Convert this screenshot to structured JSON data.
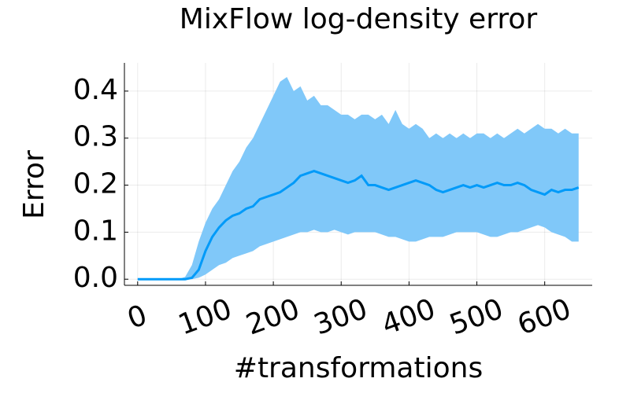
{
  "chart_data": {
    "type": "line",
    "title": "MixFlow log-density error",
    "x_label": "#transformations",
    "y_label": "Error",
    "x": [
      0,
      10,
      20,
      30,
      40,
      50,
      60,
      70,
      80,
      90,
      100,
      110,
      120,
      130,
      140,
      150,
      160,
      170,
      180,
      190,
      200,
      210,
      220,
      230,
      240,
      250,
      260,
      270,
      280,
      290,
      300,
      310,
      320,
      330,
      340,
      350,
      360,
      370,
      380,
      390,
      400,
      410,
      420,
      430,
      440,
      450,
      460,
      470,
      480,
      490,
      500,
      510,
      520,
      530,
      540,
      550,
      560,
      570,
      580,
      590,
      600,
      610,
      620,
      630,
      640,
      650
    ],
    "values": [
      0,
      0,
      0,
      0,
      0,
      0,
      0,
      0,
      0.003,
      0.02,
      0.06,
      0.09,
      0.11,
      0.125,
      0.135,
      0.14,
      0.15,
      0.155,
      0.17,
      0.175,
      0.18,
      0.185,
      0.195,
      0.205,
      0.22,
      0.225,
      0.23,
      0.225,
      0.22,
      0.215,
      0.21,
      0.205,
      0.21,
      0.22,
      0.2,
      0.2,
      0.195,
      0.19,
      0.195,
      0.2,
      0.205,
      0.21,
      0.205,
      0.2,
      0.19,
      0.185,
      0.19,
      0.195,
      0.2,
      0.195,
      0.2,
      0.195,
      0.2,
      0.205,
      0.2,
      0.2,
      0.205,
      0.2,
      0.19,
      0.185,
      0.18,
      0.19,
      0.185,
      0.19,
      0.19,
      0.195
    ],
    "lower": [
      0,
      0,
      0,
      0,
      0,
      0,
      0,
      0,
      0,
      0.003,
      0.01,
      0.02,
      0.03,
      0.035,
      0.045,
      0.05,
      0.055,
      0.06,
      0.07,
      0.075,
      0.08,
      0.085,
      0.09,
      0.095,
      0.1,
      0.1,
      0.105,
      0.1,
      0.1,
      0.105,
      0.1,
      0.095,
      0.1,
      0.1,
      0.1,
      0.1,
      0.095,
      0.09,
      0.09,
      0.085,
      0.08,
      0.08,
      0.085,
      0.09,
      0.09,
      0.09,
      0.095,
      0.1,
      0.1,
      0.1,
      0.1,
      0.095,
      0.09,
      0.09,
      0.095,
      0.1,
      0.1,
      0.105,
      0.11,
      0.115,
      0.11,
      0.1,
      0.095,
      0.09,
      0.08,
      0.08
    ],
    "upper": [
      0,
      0,
      0,
      0,
      0,
      0,
      0,
      0.005,
      0.03,
      0.08,
      0.12,
      0.15,
      0.17,
      0.2,
      0.23,
      0.25,
      0.28,
      0.3,
      0.33,
      0.36,
      0.39,
      0.42,
      0.43,
      0.4,
      0.41,
      0.38,
      0.39,
      0.37,
      0.37,
      0.36,
      0.35,
      0.35,
      0.34,
      0.35,
      0.35,
      0.34,
      0.35,
      0.33,
      0.36,
      0.33,
      0.32,
      0.33,
      0.32,
      0.3,
      0.31,
      0.3,
      0.31,
      0.3,
      0.31,
      0.3,
      0.31,
      0.31,
      0.3,
      0.31,
      0.3,
      0.31,
      0.32,
      0.31,
      0.32,
      0.33,
      0.32,
      0.32,
      0.31,
      0.32,
      0.31,
      0.31
    ],
    "color": "#009af9",
    "band_color": "#80c8f9",
    "xlim": [
      -19.5,
      670
    ],
    "ylim": [
      -0.013,
      0.46
    ],
    "xticks": [
      0,
      100,
      200,
      300,
      400,
      500,
      600
    ],
    "yticks": [
      {
        "value": 0,
        "label": "0.0"
      },
      0.1,
      0.2,
      0.3,
      0.4
    ],
    "grid": true
  }
}
